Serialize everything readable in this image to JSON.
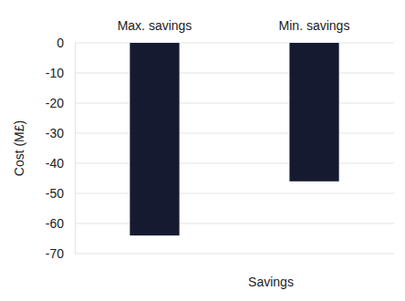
{
  "chart_data": {
    "type": "bar",
    "categories": [
      "Max. savings",
      "Min. savings"
    ],
    "values": [
      -64,
      -46
    ],
    "color": "#161a30",
    "x_label": "Savings",
    "y_label": "Cost (M£)",
    "ylim": [
      -70,
      0
    ],
    "yticks": [
      0,
      -10,
      -20,
      -30,
      -40,
      -50,
      -60,
      -70
    ],
    "grid": true
  }
}
